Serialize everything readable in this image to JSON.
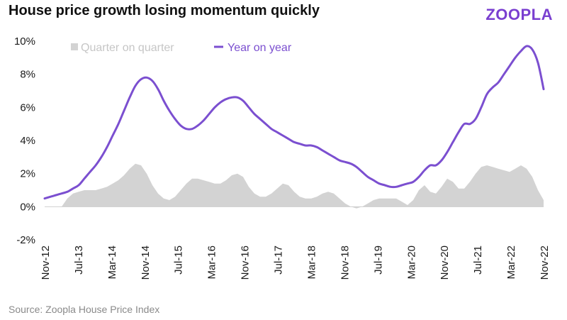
{
  "title": "House price growth losing momentum quickly",
  "brand": "ZOOPLA",
  "source": "Source: Zoopla House Price Index",
  "colors": {
    "area": "#d3d3d3",
    "line": "#7b4fd0",
    "brand": "#7a3fd0",
    "text": "#1a1a1a"
  },
  "chart_data": {
    "type": "line",
    "legend_position": "top-left",
    "ylim": [
      -2,
      10
    ],
    "yticks": [
      "-2%",
      "0%",
      "2%",
      "4%",
      "6%",
      "8%",
      "10%"
    ],
    "xticks": [
      "Nov-12",
      "Jul-13",
      "Mar-14",
      "Nov-14",
      "Jul-15",
      "Mar-16",
      "Nov-16",
      "Jul-17",
      "Mar-18",
      "Nov-18",
      "Jul-19",
      "Mar-20",
      "Nov-20",
      "Jul-21",
      "Mar-22",
      "Nov-22"
    ],
    "series": [
      {
        "name": "Quarter on quarter",
        "type": "area",
        "color": "#d3d3d3",
        "values": [
          0.0,
          0.0,
          0.0,
          0.0,
          0.5,
          0.8,
          0.9,
          1.0,
          1.0,
          1.0,
          1.1,
          1.2,
          1.4,
          1.6,
          1.9,
          2.3,
          2.6,
          2.5,
          2.0,
          1.3,
          0.8,
          0.5,
          0.4,
          0.6,
          1.0,
          1.4,
          1.7,
          1.7,
          1.6,
          1.5,
          1.4,
          1.4,
          1.6,
          1.9,
          2.0,
          1.8,
          1.2,
          0.8,
          0.6,
          0.6,
          0.8,
          1.1,
          1.4,
          1.3,
          0.9,
          0.6,
          0.5,
          0.5,
          0.6,
          0.8,
          0.9,
          0.8,
          0.5,
          0.2,
          0.0,
          -0.1,
          0.0,
          0.2,
          0.4,
          0.5,
          0.5,
          0.5,
          0.5,
          0.3,
          0.1,
          0.4,
          1.0,
          1.3,
          0.9,
          0.8,
          1.2,
          1.7,
          1.5,
          1.1,
          1.1,
          1.5,
          2.0,
          2.4,
          2.5,
          2.4,
          2.3,
          2.2,
          2.1,
          2.3,
          2.5,
          2.3,
          1.8,
          1.0,
          0.4
        ]
      },
      {
        "name": "Year on year",
        "type": "line",
        "color": "#7b4fd0",
        "values": [
          0.5,
          0.6,
          0.7,
          0.8,
          0.9,
          1.1,
          1.3,
          1.7,
          2.1,
          2.5,
          3.0,
          3.6,
          4.3,
          5.0,
          5.8,
          6.6,
          7.3,
          7.7,
          7.8,
          7.6,
          7.1,
          6.4,
          5.8,
          5.3,
          4.9,
          4.7,
          4.7,
          4.9,
          5.2,
          5.6,
          6.0,
          6.3,
          6.5,
          6.6,
          6.6,
          6.4,
          6.0,
          5.6,
          5.3,
          5.0,
          4.7,
          4.5,
          4.3,
          4.1,
          3.9,
          3.8,
          3.7,
          3.7,
          3.6,
          3.4,
          3.2,
          3.0,
          2.8,
          2.7,
          2.6,
          2.4,
          2.1,
          1.8,
          1.6,
          1.4,
          1.3,
          1.2,
          1.2,
          1.3,
          1.4,
          1.5,
          1.8,
          2.2,
          2.5,
          2.5,
          2.8,
          3.3,
          3.9,
          4.5,
          5.0,
          5.0,
          5.3,
          6.0,
          6.8,
          7.2,
          7.5,
          8.0,
          8.5,
          9.0,
          9.4,
          9.7,
          9.5,
          8.7,
          7.1
        ]
      }
    ]
  }
}
